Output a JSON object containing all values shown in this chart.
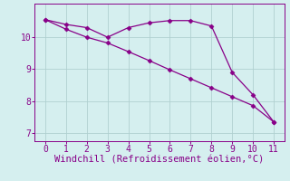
{
  "line1_x": [
    0,
    1,
    2,
    3,
    4,
    5,
    6,
    7,
    8,
    9,
    10,
    11
  ],
  "line1_y": [
    10.55,
    10.4,
    10.3,
    10.0,
    10.3,
    10.45,
    10.52,
    10.52,
    10.35,
    8.9,
    8.2,
    7.35
  ],
  "line2_x": [
    0,
    1,
    2,
    3,
    4,
    5,
    6,
    7,
    8,
    9,
    10,
    11
  ],
  "line2_y": [
    10.55,
    10.25,
    10.0,
    9.82,
    9.55,
    9.27,
    8.98,
    8.7,
    8.42,
    8.14,
    7.86,
    7.35
  ],
  "line_color": "#880088",
  "marker": "D",
  "markersize": 2.5,
  "markeredgewidth": 0.5,
  "linewidth": 0.9,
  "xlabel": "Windchill (Refroidissement éolien,°C)",
  "ylim": [
    6.75,
    11.05
  ],
  "xlim": [
    -0.5,
    11.5
  ],
  "yticks": [
    7,
    8,
    9,
    10
  ],
  "xticks": [
    0,
    1,
    2,
    3,
    4,
    5,
    6,
    7,
    8,
    9,
    10,
    11
  ],
  "bg_color": "#d5efef",
  "grid_color": "#b0d0d0",
  "tick_color": "#880088",
  "xlabel_color": "#880088",
  "xlabel_fontsize": 7.5,
  "tick_fontsize": 7
}
